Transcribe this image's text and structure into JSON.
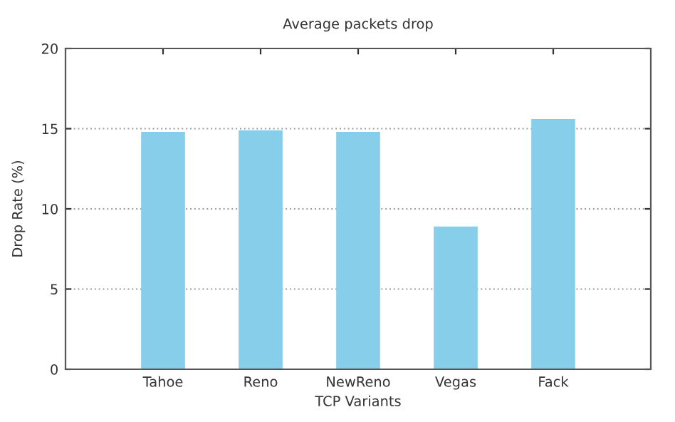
{
  "chart_data": {
    "type": "bar",
    "title": "Average packets drop",
    "xlabel": "TCP Variants",
    "ylabel": "Drop Rate (%)",
    "categories": [
      "Tahoe",
      "Reno",
      "NewReno",
      "Vegas",
      "Fack"
    ],
    "values": [
      14.8,
      14.9,
      14.8,
      8.9,
      15.6
    ],
    "color": "#87ceeb",
    "ylim": [
      0,
      20
    ],
    "yticks": [
      0,
      5,
      10,
      15,
      20
    ],
    "grid": "y"
  }
}
